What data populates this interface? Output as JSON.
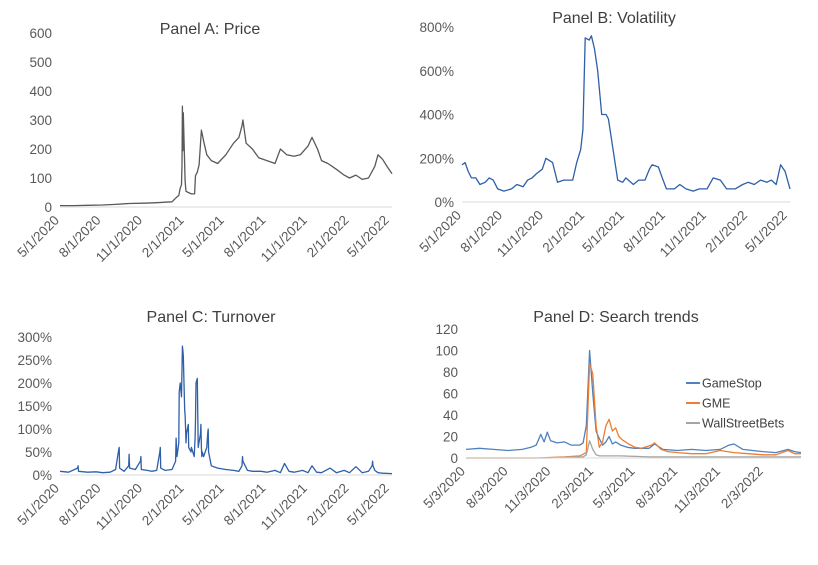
{
  "chart_data": [
    {
      "type": "line",
      "title": "Panel A: Price",
      "xlabel": "",
      "ylabel": "",
      "ylim": [
        0,
        600
      ],
      "yticks": [
        0,
        100,
        200,
        300,
        400,
        500,
        600
      ],
      "ytick_labels": [
        "0",
        "100",
        "200",
        "300",
        "400",
        "500",
        "600"
      ],
      "xtick_labels": [
        "5/1/2020",
        "8/1/2020",
        "11/1/2020",
        "2/1/2021",
        "5/1/2021",
        "8/1/2021",
        "11/1/2021",
        "2/1/2022",
        "5/1/2022"
      ],
      "xticks": [
        "2020-05-01",
        "2020-08-01",
        "2020-11-01",
        "2021-02-01",
        "2021-05-01",
        "2021-08-01",
        "2021-11-01",
        "2022-02-01",
        "2022-05-01"
      ],
      "xlim": [
        "2020-05-01",
        "2022-05-06"
      ],
      "grid": false,
      "series": [
        {
          "color": "#595959",
          "x": [
            "2020-05-01",
            "2020-06-01",
            "2020-07-01",
            "2020-08-03",
            "2020-09-01",
            "2020-10-01",
            "2020-11-02",
            "2020-12-01",
            "2021-01-04",
            "2021-01-13",
            "2021-01-19",
            "2021-01-22",
            "2021-01-25",
            "2021-01-26",
            "2021-01-27",
            "2021-01-28",
            "2021-01-29",
            "2021-02-02",
            "2021-02-04",
            "2021-02-09",
            "2021-02-16",
            "2021-02-23",
            "2021-02-25",
            "2021-03-01",
            "2021-03-05",
            "2021-03-10",
            "2021-03-16",
            "2021-03-22",
            "2021-04-01",
            "2021-04-15",
            "2021-05-03",
            "2021-05-20",
            "2021-06-01",
            "2021-06-08",
            "2021-06-10",
            "2021-06-17",
            "2021-07-01",
            "2021-07-15",
            "2021-08-02",
            "2021-08-20",
            "2021-09-01",
            "2021-09-15",
            "2021-10-01",
            "2021-10-15",
            "2021-11-01",
            "2021-11-10",
            "2021-11-22",
            "2021-12-01",
            "2021-12-15",
            "2022-01-03",
            "2022-01-20",
            "2022-02-01",
            "2022-02-15",
            "2022-03-01",
            "2022-03-15",
            "2022-03-29",
            "2022-04-05",
            "2022-04-15",
            "2022-04-25",
            "2022-05-06"
          ],
          "y": [
            5,
            5,
            6,
            7,
            9,
            12,
            13,
            15,
            18,
            32,
            40,
            65,
            77,
            148,
            348,
            194,
            325,
            90,
            54,
            50,
            45,
            45,
            108,
            120,
            145,
            265,
            220,
            180,
            160,
            150,
            180,
            220,
            240,
            280,
            300,
            220,
            200,
            170,
            160,
            150,
            200,
            180,
            175,
            180,
            210,
            240,
            200,
            160,
            150,
            130,
            110,
            100,
            110,
            95,
            100,
            140,
            180,
            165,
            140,
            115
          ]
        }
      ]
    },
    {
      "type": "line",
      "title": "Panel B: Volatility",
      "xlabel": "",
      "ylabel": "",
      "ylim": [
        0,
        800
      ],
      "yticks": [
        0,
        200,
        400,
        600,
        800
      ],
      "ytick_labels": [
        "0%",
        "200%",
        "400%",
        "600%",
        "800%"
      ],
      "xtick_labels": [
        "5/1/2020",
        "8/1/2020",
        "11/1/2020",
        "2/1/2021",
        "5/1/2021",
        "8/1/2021",
        "11/1/2021",
        "2/1/2022",
        "5/1/2022"
      ],
      "xticks": [
        "2020-05-01",
        "2020-08-01",
        "2020-11-01",
        "2021-02-01",
        "2021-05-01",
        "2021-08-01",
        "2021-11-01",
        "2022-02-01",
        "2022-05-01"
      ],
      "xlim": [
        "2020-05-01",
        "2022-05-06"
      ],
      "grid": false,
      "series": [
        {
          "color": "#2e5fa8",
          "x": [
            "2020-05-01",
            "2020-05-08",
            "2020-05-15",
            "2020-05-22",
            "2020-06-01",
            "2020-06-10",
            "2020-06-22",
            "2020-07-01",
            "2020-07-10",
            "2020-07-20",
            "2020-08-03",
            "2020-08-20",
            "2020-09-01",
            "2020-09-15",
            "2020-09-25",
            "2020-10-05",
            "2020-10-15",
            "2020-10-28",
            "2020-11-05",
            "2020-11-20",
            "2020-12-01",
            "2020-12-15",
            "2021-01-04",
            "2021-01-13",
            "2021-01-22",
            "2021-01-27",
            "2021-02-01",
            "2021-02-10",
            "2021-02-15",
            "2021-02-22",
            "2021-03-01",
            "2021-03-10",
            "2021-03-20",
            "2021-03-25",
            "2021-04-15",
            "2021-04-26",
            "2021-05-03",
            "2021-05-20",
            "2021-06-01",
            "2021-06-15",
            "2021-06-25",
            "2021-07-01",
            "2021-07-15",
            "2021-07-22",
            "2021-08-02",
            "2021-08-20",
            "2021-09-01",
            "2021-09-15",
            "2021-10-01",
            "2021-10-15",
            "2021-11-01",
            "2021-11-15",
            "2021-12-01",
            "2021-12-15",
            "2022-01-03",
            "2022-01-20",
            "2022-02-01",
            "2022-02-15",
            "2022-03-01",
            "2022-03-15",
            "2022-03-25",
            "2022-04-05",
            "2022-04-15",
            "2022-04-25",
            "2022-05-06"
          ],
          "y": [
            170,
            180,
            140,
            110,
            110,
            80,
            90,
            110,
            100,
            60,
            50,
            60,
            80,
            70,
            100,
            110,
            130,
            150,
            200,
            180,
            90,
            100,
            100,
            180,
            240,
            330,
            750,
            740,
            760,
            700,
            600,
            400,
            400,
            380,
            100,
            90,
            110,
            80,
            100,
            100,
            150,
            170,
            160,
            120,
            60,
            60,
            80,
            60,
            50,
            60,
            60,
            110,
            100,
            60,
            60,
            80,
            90,
            80,
            100,
            90,
            100,
            80,
            170,
            140,
            60
          ]
        }
      ]
    },
    {
      "type": "line",
      "title": "Panel C: Turnover",
      "xlabel": "",
      "ylabel": "",
      "ylim": [
        0,
        300
      ],
      "yticks": [
        0,
        50,
        100,
        150,
        200,
        250,
        300
      ],
      "ytick_labels": [
        "0%",
        "50%",
        "100%",
        "150%",
        "200%",
        "250%",
        "300%"
      ],
      "xtick_labels": [
        "5/1/2020",
        "8/1/2020",
        "11/1/2020",
        "2/1/2021",
        "5/1/2021",
        "8/1/2021",
        "11/1/2021",
        "2/1/2022",
        "5/1/2022"
      ],
      "xticks": [
        "2020-05-01",
        "2020-08-01",
        "2020-11-01",
        "2021-02-01",
        "2021-05-01",
        "2021-08-01",
        "2021-11-01",
        "2022-02-01",
        "2022-05-01"
      ],
      "xlim": [
        "2020-05-01",
        "2022-05-06"
      ],
      "grid": false,
      "series": [
        {
          "color": "#2e5fa8",
          "x": [
            "2020-05-01",
            "2020-05-20",
            "2020-06-09",
            "2020-06-10",
            "2020-06-11",
            "2020-07-01",
            "2020-07-20",
            "2020-08-03",
            "2020-08-20",
            "2020-09-01",
            "2020-09-08",
            "2020-09-09",
            "2020-09-10",
            "2020-09-20",
            "2020-09-30",
            "2020-10-01",
            "2020-10-02",
            "2020-10-15",
            "2020-10-26",
            "2020-10-27",
            "2020-10-28",
            "2020-11-10",
            "2020-11-20",
            "2020-12-01",
            "2020-12-08",
            "2020-12-09",
            "2020-12-10",
            "2020-12-20",
            "2021-01-04",
            "2021-01-12",
            "2021-01-13",
            "2021-01-14",
            "2021-01-15",
            "2021-01-19",
            "2021-01-20",
            "2021-01-21",
            "2021-01-22",
            "2021-01-25",
            "2021-01-26",
            "2021-01-27",
            "2021-01-28",
            "2021-01-29",
            "2021-02-01",
            "2021-02-02",
            "2021-02-03",
            "2021-02-04",
            "2021-02-05",
            "2021-02-09",
            "2021-02-10",
            "2021-02-15",
            "2021-02-16",
            "2021-02-22",
            "2021-02-24",
            "2021-02-25",
            "2021-02-26",
            "2021-03-01",
            "2021-03-03",
            "2021-03-08",
            "2021-03-09",
            "2021-03-10",
            "2021-03-11",
            "2021-03-12",
            "2021-03-15",
            "2021-03-22",
            "2021-03-24",
            "2021-03-25",
            "2021-03-26",
            "2021-04-01",
            "2021-04-15",
            "2021-05-03",
            "2021-05-20",
            "2021-06-01",
            "2021-06-08",
            "2021-06-09",
            "2021-06-10",
            "2021-06-20",
            "2021-07-01",
            "2021-07-20",
            "2021-08-02",
            "2021-08-20",
            "2021-09-01",
            "2021-09-10",
            "2021-09-20",
            "2021-10-01",
            "2021-10-20",
            "2021-11-01",
            "2021-11-10",
            "2021-11-20",
            "2021-12-01",
            "2021-12-20",
            "2022-01-03",
            "2022-01-20",
            "2022-02-01",
            "2022-02-15",
            "2022-03-01",
            "2022-03-15",
            "2022-03-23",
            "2022-03-24",
            "2022-03-25",
            "2022-03-29",
            "2022-04-05",
            "2022-04-15",
            "2022-05-06"
          ],
          "y": [
            8,
            6,
            15,
            20,
            8,
            6,
            7,
            5,
            6,
            12,
            55,
            60,
            15,
            8,
            20,
            45,
            15,
            12,
            30,
            40,
            12,
            10,
            8,
            10,
            50,
            60,
            15,
            10,
            12,
            30,
            80,
            60,
            40,
            70,
            180,
            190,
            200,
            170,
            230,
            280,
            270,
            260,
            140,
            130,
            100,
            70,
            90,
            110,
            60,
            50,
            60,
            40,
            80,
            120,
            200,
            210,
            60,
            90,
            110,
            60,
            40,
            50,
            40,
            60,
            90,
            100,
            50,
            20,
            15,
            12,
            10,
            8,
            20,
            40,
            30,
            10,
            8,
            8,
            6,
            10,
            5,
            25,
            8,
            6,
            10,
            5,
            20,
            6,
            5,
            15,
            5,
            10,
            5,
            18,
            5,
            8,
            20,
            30,
            20,
            10,
            5,
            4,
            3
          ]
        }
      ]
    },
    {
      "type": "line",
      "title": "Panel D: Search trends",
      "xlabel": "",
      "ylabel": "",
      "ylim": [
        0,
        120
      ],
      "yticks": [
        0,
        20,
        40,
        60,
        80,
        100,
        120
      ],
      "ytick_labels": [
        "0",
        "20",
        "40",
        "60",
        "80",
        "100",
        "120"
      ],
      "xtick_labels": [
        "5/3/2020",
        "8/3/2020",
        "11/3/2020",
        "2/3/2021",
        "5/3/2021",
        "8/3/2021",
        "11/3/2021",
        "2/3/2022"
      ],
      "xticks": [
        "2020-05-03",
        "2020-08-03",
        "2020-11-03",
        "2021-02-03",
        "2021-05-03",
        "2021-08-03",
        "2021-11-03",
        "2022-02-03"
      ],
      "xlim": [
        "2020-05-03",
        "2022-04-24"
      ],
      "grid": false,
      "legend": "right",
      "series": [
        {
          "name": "GameStop",
          "color": "#4f81bd",
          "x": [
            "2020-05-03",
            "2020-06-01",
            "2020-07-01",
            "2020-08-01",
            "2020-09-01",
            "2020-09-20",
            "2020-10-01",
            "2020-10-11",
            "2020-10-18",
            "2020-10-25",
            "2020-11-01",
            "2020-11-15",
            "2020-12-01",
            "2020-12-15",
            "2021-01-03",
            "2021-01-10",
            "2021-01-17",
            "2021-01-24",
            "2021-01-31",
            "2021-02-07",
            "2021-02-14",
            "2021-02-21",
            "2021-02-28",
            "2021-03-07",
            "2021-03-14",
            "2021-03-21",
            "2021-04-01",
            "2021-04-15",
            "2021-05-01",
            "2021-06-01",
            "2021-06-13",
            "2021-07-01",
            "2021-08-01",
            "2021-09-01",
            "2021-10-01",
            "2021-11-01",
            "2021-11-20",
            "2021-12-01",
            "2021-12-20",
            "2022-01-10",
            "2022-02-01",
            "2022-03-01",
            "2022-03-27",
            "2022-04-10",
            "2022-04-24"
          ],
          "y": [
            8,
            9,
            8,
            7,
            8,
            10,
            12,
            22,
            15,
            24,
            16,
            14,
            15,
            12,
            12,
            14,
            30,
            100,
            60,
            25,
            18,
            12,
            15,
            20,
            13,
            15,
            12,
            10,
            9,
            9,
            13,
            8,
            7,
            8,
            7,
            8,
            12,
            13,
            8,
            7,
            6,
            5,
            8,
            6,
            5
          ]
        },
        {
          "name": "GME",
          "color": "#ed7d31",
          "x": [
            "2020-05-03",
            "2020-06-01",
            "2020-08-01",
            "2020-10-01",
            "2020-12-01",
            "2021-01-03",
            "2021-01-17",
            "2021-01-24",
            "2021-01-31",
            "2021-02-07",
            "2021-02-14",
            "2021-02-21",
            "2021-02-28",
            "2021-03-07",
            "2021-03-14",
            "2021-03-21",
            "2021-03-28",
            "2021-04-04",
            "2021-04-18",
            "2021-05-02",
            "2021-05-16",
            "2021-06-06",
            "2021-06-13",
            "2021-06-27",
            "2021-07-11",
            "2021-08-01",
            "2021-09-01",
            "2021-10-01",
            "2021-11-01",
            "2021-12-01",
            "2022-01-01",
            "2022-02-01",
            "2022-03-01",
            "2022-03-27",
            "2022-04-10",
            "2022-04-24"
          ],
          "y": [
            0,
            0,
            0,
            0,
            1,
            2,
            5,
            88,
            78,
            30,
            10,
            15,
            30,
            36,
            25,
            28,
            20,
            17,
            13,
            10,
            9,
            12,
            14,
            8,
            6,
            5,
            4,
            4,
            7,
            5,
            4,
            3,
            3,
            7,
            4,
            4
          ]
        },
        {
          "name": "WallStreetBets",
          "color": "#a5a5a5",
          "x": [
            "2020-05-03",
            "2020-08-01",
            "2020-11-01",
            "2020-12-20",
            "2021-01-10",
            "2021-01-17",
            "2021-01-24",
            "2021-01-31",
            "2021-02-07",
            "2021-02-14",
            "2021-03-01",
            "2021-04-01",
            "2021-06-01",
            "2021-08-01",
            "2021-11-01",
            "2022-02-01",
            "2022-04-24"
          ],
          "y": [
            0,
            0,
            0,
            1,
            1,
            3,
            16,
            8,
            3,
            2,
            2,
            2,
            1,
            1,
            1,
            1,
            1
          ]
        }
      ]
    }
  ]
}
